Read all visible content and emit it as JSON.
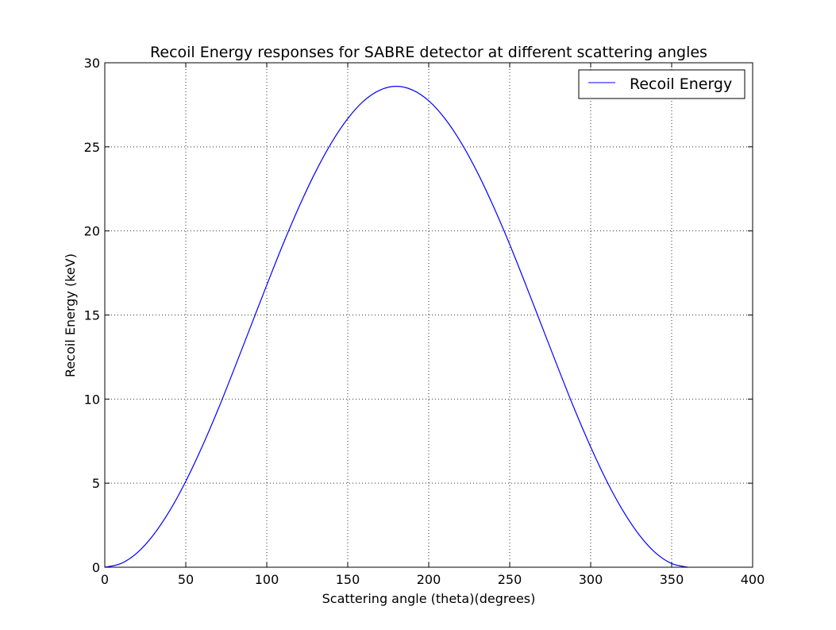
{
  "chart_data": {
    "type": "line",
    "title": "Recoil Energy responses for SABRE detector at different scattering angles",
    "xlabel": "Scattering angle (theta)(degrees)",
    "ylabel": "Recoil Energy (keV)",
    "xlim": [
      0,
      400
    ],
    "ylim": [
      0,
      30
    ],
    "xticks": [
      0,
      50,
      100,
      150,
      200,
      250,
      300,
      350,
      400
    ],
    "yticks": [
      0,
      5,
      10,
      15,
      20,
      25,
      30
    ],
    "xtick_labels": [
      "0",
      "50",
      "100",
      "150",
      "200",
      "250",
      "300",
      "350",
      "400"
    ],
    "ytick_labels": [
      "0",
      "5",
      "10",
      "15",
      "20",
      "25",
      "30"
    ],
    "grid": true,
    "legend_position": "top-right",
    "series": [
      {
        "name": "Recoil Energy",
        "color": "#0000ff",
        "x": [
          0,
          10,
          20,
          30,
          40,
          50,
          60,
          70,
          80,
          90,
          100,
          110,
          120,
          130,
          140,
          150,
          160,
          170,
          180,
          190,
          200,
          210,
          220,
          230,
          240,
          250,
          260,
          270,
          280,
          290,
          300,
          310,
          320,
          330,
          340,
          350,
          360
        ],
        "y": [
          0,
          0.22,
          0.86,
          1.92,
          3.35,
          5.11,
          7.15,
          9.4,
          11.82,
          14.3,
          16.78,
          19.2,
          21.45,
          23.49,
          25.25,
          26.68,
          27.74,
          28.38,
          28.6,
          28.38,
          27.74,
          26.68,
          25.25,
          23.49,
          21.45,
          19.2,
          16.78,
          14.3,
          11.82,
          9.4,
          7.15,
          5.11,
          3.35,
          1.92,
          0.86,
          0.22,
          0
        ]
      }
    ]
  }
}
